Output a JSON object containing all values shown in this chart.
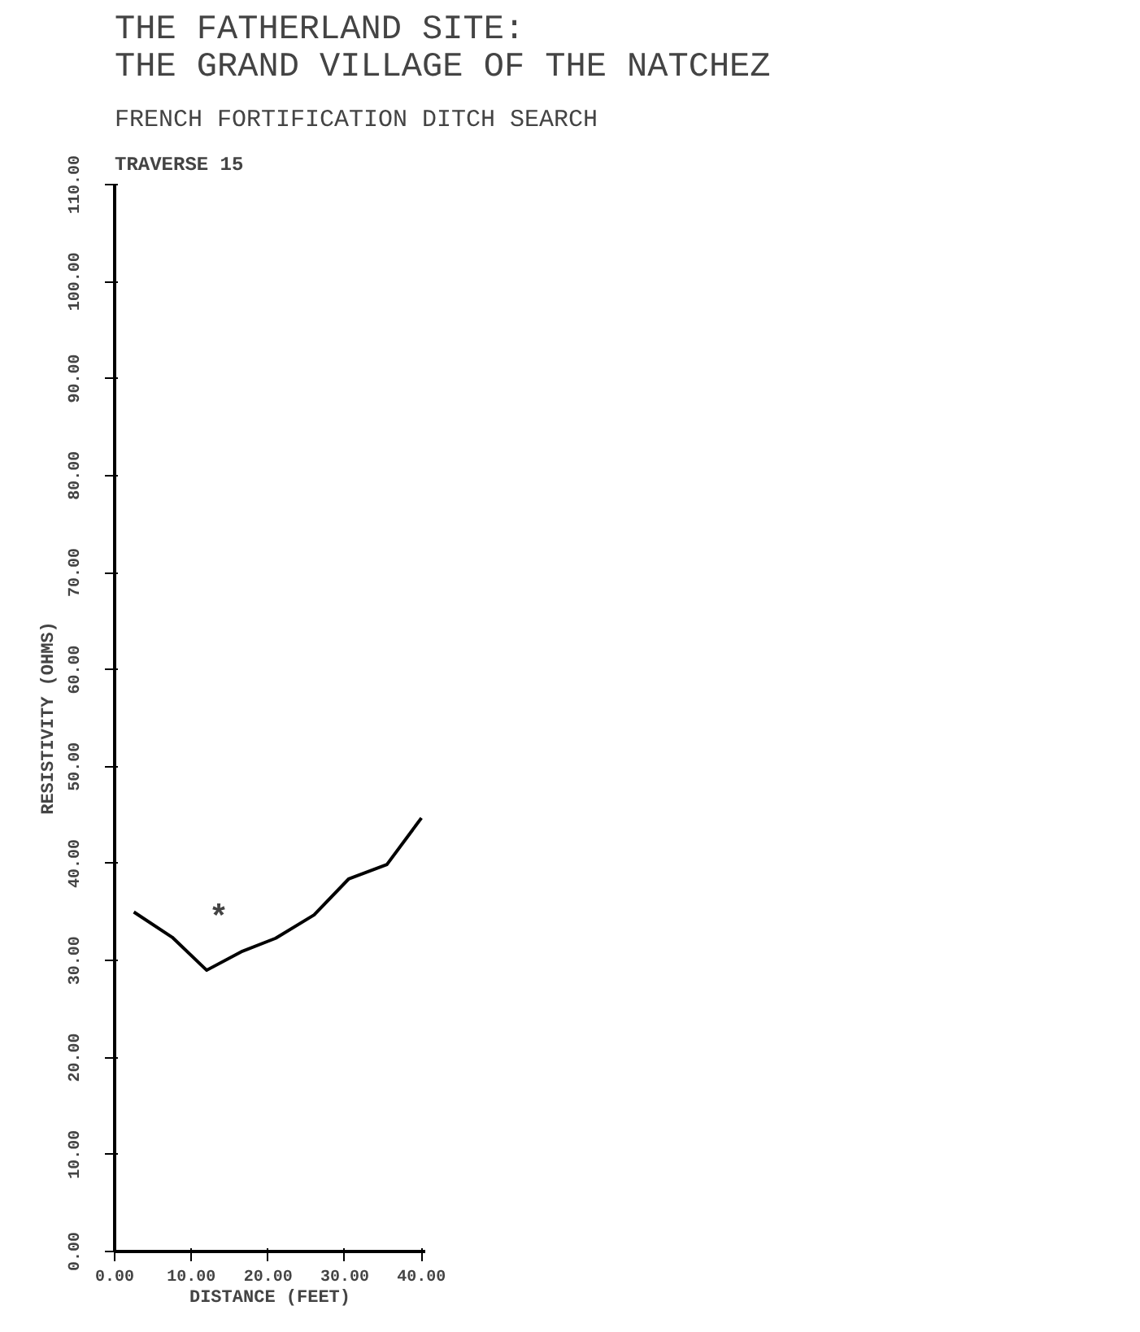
{
  "chart_data": {
    "type": "line",
    "title": "THE FATHERLAND SITE:\nTHE GRAND VILLAGE OF THE NATCHEZ",
    "subtitle": "FRENCH FORTIFICATION DITCH SEARCH",
    "xlabel": "DISTANCE (FEET)",
    "ylabel": "RESISTIVITY (OHMS)",
    "annotations": [
      "TRAVERSE 15",
      "*"
    ],
    "x": [
      2.5,
      7.5,
      12,
      16.5,
      21,
      26,
      30.5,
      35.5,
      40
    ],
    "series": [
      {
        "color": "#000000",
        "values": [
          35.0,
          32.4,
          29.0,
          30.9,
          32.3,
          34.7,
          38.4,
          39.9,
          44.7
        ]
      }
    ],
    "xlim": [
      0,
      40.5
    ],
    "ylim": [
      0,
      110
    ],
    "xticks": [
      {
        "value": 0,
        "label": "0.00"
      },
      {
        "value": 10,
        "label": "10.00"
      },
      {
        "value": 20,
        "label": "20.00"
      },
      {
        "value": 30,
        "label": "30.00"
      },
      {
        "value": 40,
        "label": "40.00"
      }
    ],
    "yticks": [
      {
        "value": 0,
        "label": "0.00"
      },
      {
        "value": 10,
        "label": "10.00"
      },
      {
        "value": 20,
        "label": "20.00"
      },
      {
        "value": 30,
        "label": "30.00"
      },
      {
        "value": 40,
        "label": "40.00"
      },
      {
        "value": 50,
        "label": "50.00"
      },
      {
        "value": 60,
        "label": "60.00"
      },
      {
        "value": 70,
        "label": "70.00"
      },
      {
        "value": 80,
        "label": "80.00"
      },
      {
        "value": 90,
        "label": "90.00"
      },
      {
        "value": 100,
        "label": "100.00"
      },
      {
        "value": 110,
        "label": "110.00"
      }
    ],
    "grid": false,
    "marker": "none",
    "line_style": "solid"
  }
}
